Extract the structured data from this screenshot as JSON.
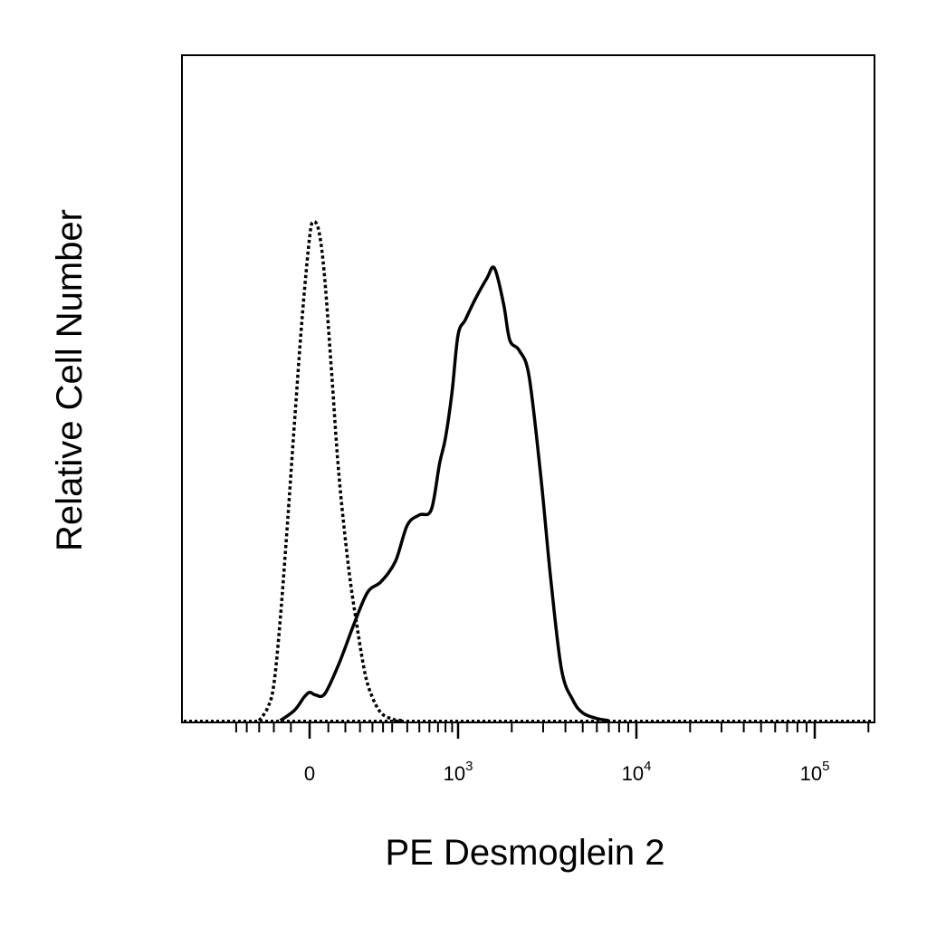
{
  "chart_data": {
    "type": "line",
    "xlabel": "PE Desmoglein 2",
    "ylabel": "Relative Cell Number",
    "x_scale": "logicle",
    "xlim": [
      -300,
      200000
    ],
    "ylim": [
      0,
      100
    ],
    "grid": false,
    "legend": "none",
    "x_tick_labels": [
      {
        "value": 0,
        "base": "0",
        "exp": ""
      },
      {
        "value": 1000,
        "base": "10",
        "exp": "3"
      },
      {
        "value": 10000,
        "base": "10",
        "exp": "4"
      },
      {
        "value": 100000,
        "base": "10",
        "exp": "5"
      }
    ],
    "series": [
      {
        "style": "dotted",
        "color": "#000000",
        "x": [
          -150,
          -120,
          -100,
          -80,
          -60,
          -40,
          -20,
          0,
          10,
          25,
          40,
          60,
          80,
          110,
          140,
          170,
          200,
          240,
          300,
          360
        ],
        "y": [
          0,
          2.5,
          7,
          20,
          38,
          58,
          78,
          94,
          97,
          95,
          86,
          67,
          48,
          30,
          18,
          9,
          4.5,
          1.5,
          0.3,
          0
        ]
      },
      {
        "style": "solid",
        "color": "#000000",
        "x": [
          -80,
          -40,
          -15,
          0,
          15,
          40,
          80,
          130,
          180,
          240,
          320,
          400,
          500,
          620,
          720,
          800,
          900,
          1000,
          1100,
          1250,
          1450,
          1600,
          1800,
          1950,
          2200,
          2500,
          2900,
          3300,
          3800,
          4400,
          5000,
          6000,
          7000
        ],
        "y": [
          0,
          2,
          4.5,
          5.5,
          5,
          5.2,
          11,
          19,
          25,
          27,
          31,
          38,
          40,
          41,
          50,
          55,
          64,
          75,
          78,
          82,
          86,
          88,
          81,
          74,
          72,
          67,
          48,
          28,
          10,
          4,
          1.5,
          0.4,
          0
        ]
      }
    ]
  }
}
